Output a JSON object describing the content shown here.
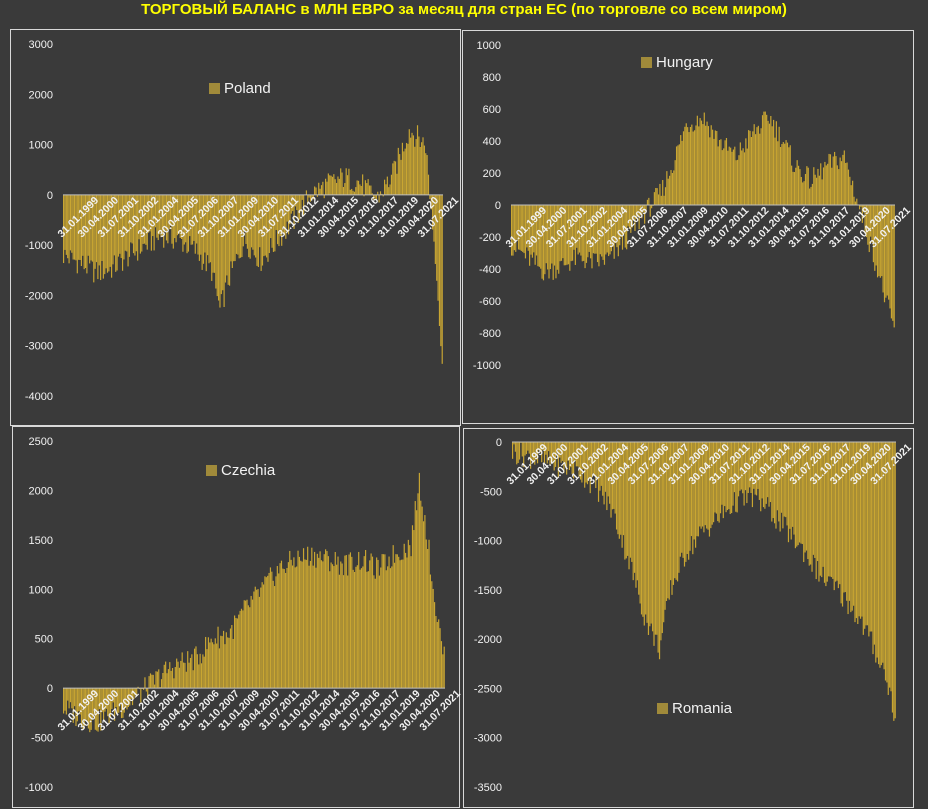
{
  "title": "ТОРГОВЫЙ БАЛАНС в МЛН ЕВРО за месяц для стран ЕС (по торговле со всем миром)",
  "colors": {
    "bar": "#c9a632",
    "legend": "#a08a3a",
    "title": "#ffff00",
    "background": "#3a3a3a"
  },
  "chart_data": [
    {
      "type": "bar",
      "series": [
        {
          "name": "Poland"
        }
      ],
      "legend_position": "top-center",
      "ylim": [
        -4000,
        3000
      ],
      "yticks": [
        "3000",
        "2000",
        "1000",
        "0",
        "-1000",
        "-2000",
        "-3000",
        "-4000"
      ],
      "xticks": [
        "31.01.1999",
        "30.04.2000",
        "31.07.2001",
        "31.10.2002",
        "31.01.2004",
        "30.04.2005",
        "31.07.2006",
        "31.10.2007",
        "31.01.2009",
        "30.04.2010",
        "31.07.2011",
        "31.10.2012",
        "31.01.2014",
        "30.04.2015",
        "31.07.2016",
        "31.10.2017",
        "31.01.2019",
        "30.04.2020",
        "31.07.2021"
      ],
      "anchors": [
        [
          0,
          -1200
        ],
        [
          12,
          -1350
        ],
        [
          24,
          -1550
        ],
        [
          36,
          -1450
        ],
        [
          48,
          -1200
        ],
        [
          60,
          -1000
        ],
        [
          72,
          -800
        ],
        [
          84,
          -900
        ],
        [
          96,
          -1100
        ],
        [
          108,
          -1500
        ],
        [
          114,
          -2300
        ],
        [
          120,
          -1700
        ],
        [
          132,
          -900
        ],
        [
          144,
          -1300
        ],
        [
          156,
          -900
        ],
        [
          168,
          -500
        ],
        [
          180,
          0
        ],
        [
          192,
          200
        ],
        [
          204,
          350
        ],
        [
          216,
          250
        ],
        [
          228,
          -100
        ],
        [
          240,
          400
        ],
        [
          252,
          1300
        ],
        [
          264,
          1000
        ],
        [
          268,
          -300
        ],
        [
          272,
          -1500
        ],
        [
          276,
          -3500
        ]
      ]
    },
    {
      "type": "bar",
      "series": [
        {
          "name": "Hungary"
        }
      ],
      "legend_position": "top-center",
      "ylim": [
        -1000,
        1000
      ],
      "yticks": [
        "1000",
        "800",
        "600",
        "400",
        "200",
        "0",
        "-200",
        "-400",
        "-600",
        "-800",
        "-1000"
      ],
      "xticks": [
        "31.01.1999",
        "30.04.2000",
        "31.07.2001",
        "31.10.2002",
        "31.01.2004",
        "30.04.2005",
        "31.07.2006",
        "31.10.2007",
        "31.01.2009",
        "30.04.2010",
        "31.07.2011",
        "31.10.2012",
        "31.01.2014",
        "30.04.2015",
        "31.07.2016",
        "31.10.2017",
        "31.01.2019",
        "30.04.2020",
        "31.07.2021"
      ],
      "anchors": [
        [
          0,
          -250
        ],
        [
          12,
          -330
        ],
        [
          24,
          -420
        ],
        [
          36,
          -380
        ],
        [
          48,
          -330
        ],
        [
          60,
          -360
        ],
        [
          72,
          -330
        ],
        [
          84,
          -200
        ],
        [
          96,
          -50
        ],
        [
          108,
          80
        ],
        [
          116,
          250
        ],
        [
          126,
          500
        ],
        [
          138,
          550
        ],
        [
          150,
          400
        ],
        [
          162,
          300
        ],
        [
          174,
          450
        ],
        [
          186,
          550
        ],
        [
          196,
          400
        ],
        [
          204,
          250
        ],
        [
          216,
          150
        ],
        [
          228,
          250
        ],
        [
          240,
          300
        ],
        [
          252,
          -50
        ],
        [
          264,
          -400
        ],
        [
          270,
          -600
        ],
        [
          276,
          -780
        ]
      ]
    },
    {
      "type": "bar",
      "series": [
        {
          "name": "Czechia"
        }
      ],
      "legend_position": "top-center",
      "ylim": [
        -1000,
        2500
      ],
      "yticks": [
        "2500",
        "2000",
        "1500",
        "1000",
        "500",
        "0",
        "-500",
        "-1000"
      ],
      "xticks": [
        "31.01.1999",
        "30.04.2000",
        "31.07.2001",
        "31.10.2002",
        "31.01.2004",
        "30.04.2005",
        "31.07.2006",
        "31.10.2007",
        "31.01.2009",
        "30.04.2010",
        "31.07.2011",
        "31.10.2012",
        "31.01.2014",
        "30.04.2015",
        "31.07.2016",
        "31.10.2017",
        "31.01.2019",
        "30.04.2020",
        "31.07.2021"
      ],
      "anchors": [
        [
          0,
          -200
        ],
        [
          12,
          -300
        ],
        [
          24,
          -350
        ],
        [
          36,
          -250
        ],
        [
          48,
          -150
        ],
        [
          60,
          0
        ],
        [
          72,
          150
        ],
        [
          84,
          250
        ],
        [
          96,
          300
        ],
        [
          108,
          500
        ],
        [
          120,
          550
        ],
        [
          132,
          800
        ],
        [
          144,
          1000
        ],
        [
          156,
          1200
        ],
        [
          168,
          1300
        ],
        [
          180,
          1350
        ],
        [
          192,
          1300
        ],
        [
          204,
          1250
        ],
        [
          216,
          1300
        ],
        [
          228,
          1200
        ],
        [
          240,
          1350
        ],
        [
          252,
          1450
        ],
        [
          258,
          2100
        ],
        [
          264,
          1500
        ],
        [
          270,
          800
        ],
        [
          276,
          300
        ]
      ]
    },
    {
      "type": "bar",
      "series": [
        {
          "name": "Romania"
        }
      ],
      "legend_position": "bottom-center",
      "ylim": [
        -3500,
        0
      ],
      "yticks": [
        "0",
        "-500",
        "-1000",
        "-1500",
        "-2000",
        "-2500",
        "-3000",
        "-3500"
      ],
      "xticks": [
        "31.01.1999",
        "30.04.2000",
        "31.07.2001",
        "31.10.2002",
        "31.01.2004",
        "30.04.2005",
        "31.07.2006",
        "31.10.2007",
        "31.01.2009",
        "30.04.2010",
        "31.07.2011",
        "31.10.2012",
        "31.01.2014",
        "30.04.2015",
        "31.07.2016",
        "31.10.2017",
        "31.01.2019",
        "30.04.2020",
        "31.07.2021"
      ],
      "anchors": [
        [
          0,
          -100
        ],
        [
          12,
          -150
        ],
        [
          24,
          -200
        ],
        [
          36,
          -250
        ],
        [
          48,
          -300
        ],
        [
          60,
          -450
        ],
        [
          72,
          -700
        ],
        [
          84,
          -1200
        ],
        [
          96,
          -1800
        ],
        [
          106,
          -2100
        ],
        [
          114,
          -1500
        ],
        [
          126,
          -1100
        ],
        [
          138,
          -900
        ],
        [
          150,
          -750
        ],
        [
          162,
          -600
        ],
        [
          174,
          -550
        ],
        [
          186,
          -700
        ],
        [
          198,
          -900
        ],
        [
          210,
          -1100
        ],
        [
          222,
          -1350
        ],
        [
          234,
          -1500
        ],
        [
          246,
          -1700
        ],
        [
          258,
          -2000
        ],
        [
          270,
          -2400
        ],
        [
          276,
          -2800
        ]
      ]
    }
  ]
}
